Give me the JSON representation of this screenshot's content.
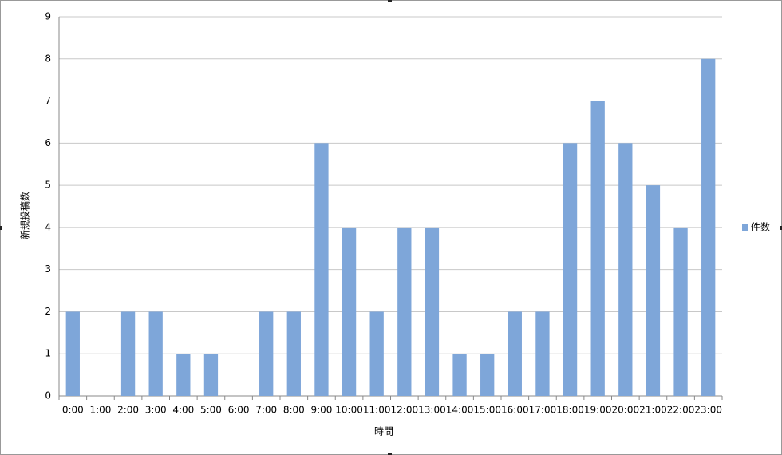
{
  "chart_data": {
    "type": "bar",
    "x_label": "時間",
    "y_label": "新規投稿数",
    "categories": [
      "0:00",
      "1:00",
      "2:00",
      "3:00",
      "4:00",
      "5:00",
      "6:00",
      "7:00",
      "8:00",
      "9:00",
      "10:00",
      "11:00",
      "12:00",
      "13:00",
      "14:00",
      "15:00",
      "16:00",
      "17:00",
      "18:00",
      "19:00",
      "20:00",
      "21:00",
      "22:00",
      "23:00"
    ],
    "series": [
      {
        "name": "件数",
        "color": "#7ea6d9",
        "values": [
          2,
          0,
          2,
          2,
          1,
          1,
          0,
          2,
          2,
          6,
          4,
          2,
          4,
          4,
          1,
          1,
          2,
          2,
          6,
          7,
          6,
          5,
          4,
          8
        ]
      }
    ],
    "ylim": [
      0,
      9
    ],
    "yticks": [
      0,
      1,
      2,
      3,
      4,
      5,
      6,
      7,
      8,
      9
    ],
    "grid": true,
    "legend": "right"
  }
}
